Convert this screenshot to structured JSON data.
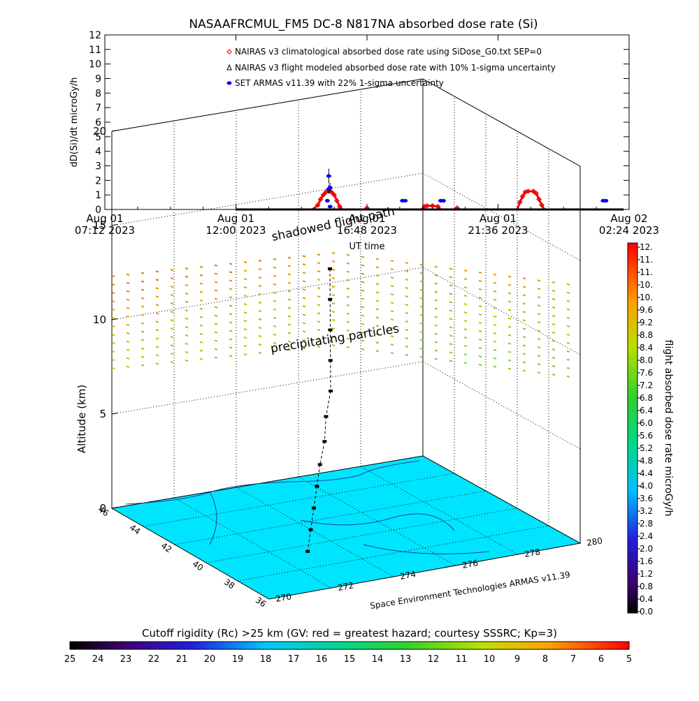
{
  "chart_data": [
    {
      "type": "line",
      "title": "NASAAFRCMUL_FM5 DC-8   N817NA absorbed dose rate (Si)",
      "xlabel": "UT time",
      "ylabel": "dD(Si)/dt microGy/h",
      "ylim": [
        0,
        12
      ],
      "yticks": [
        "0",
        "1",
        "2",
        "3",
        "4",
        "5",
        "6",
        "7",
        "8",
        "9",
        "10",
        "11",
        "12"
      ],
      "xticks": [
        {
          "line1": "Aug 01",
          "line2": "07:12 2023"
        },
        {
          "line1": "Aug 01",
          "line2": "12:00 2023"
        },
        {
          "line1": "Aug 01",
          "line2": "16:48 2023"
        },
        {
          "line1": "Aug 01",
          "line2": "21:36 2023"
        },
        {
          "line1": "Aug 02",
          "line2": "02:24 2023"
        }
      ],
      "xrange_hours": [
        0,
        19.2
      ],
      "legend_position": "top-right",
      "series": [
        {
          "name": "NAIRAS v3 climatological absorbed dose rate using SiDose_G0.txt SEP=0",
          "marker": "diamond",
          "color": "#dd0000",
          "points": [
            [
              4.8,
              0
            ],
            [
              7.6,
              0
            ],
            [
              7.8,
              0.3
            ],
            [
              7.9,
              0.7
            ],
            [
              8.0,
              1.0
            ],
            [
              8.1,
              1.2
            ],
            [
              8.2,
              1.25
            ],
            [
              8.3,
              1.2
            ],
            [
              8.4,
              1.0
            ],
            [
              8.5,
              0.6
            ],
            [
              8.6,
              0.2
            ],
            [
              8.7,
              0
            ],
            [
              9.5,
              0
            ],
            [
              9.6,
              0.1
            ],
            [
              9.7,
              0
            ],
            [
              11.6,
              0
            ],
            [
              11.7,
              0.2
            ],
            [
              11.8,
              0.25
            ],
            [
              12.0,
              0.25
            ],
            [
              12.2,
              0.2
            ],
            [
              12.3,
              0
            ],
            [
              12.8,
              0
            ],
            [
              12.9,
              0.1
            ],
            [
              13.0,
              0
            ],
            [
              15.1,
              0
            ],
            [
              15.2,
              0.5
            ],
            [
              15.3,
              0.9
            ],
            [
              15.4,
              1.2
            ],
            [
              15.5,
              1.25
            ],
            [
              15.7,
              1.25
            ],
            [
              15.8,
              1.1
            ],
            [
              15.9,
              0.7
            ],
            [
              16.0,
              0.3
            ],
            [
              16.1,
              0
            ],
            [
              19.0,
              0
            ]
          ]
        },
        {
          "name": "NAIRAS v3 flight modeled absorbed dose rate with 10% 1-sigma uncertainty",
          "marker": "triangle",
          "color": "#000000",
          "points": [
            [
              4.8,
              0
            ],
            [
              8.1,
              0
            ],
            [
              8.2,
              0
            ],
            [
              19.0,
              0
            ]
          ]
        },
        {
          "name": "SET ARMAS v11.39 with 22% 1-sigma uncertainty",
          "marker": "circle",
          "color": "#0000ff",
          "points": [
            [
              8.15,
              0.6
            ],
            [
              8.2,
              1.4
            ],
            [
              8.25,
              1.5
            ],
            [
              8.2,
              2.3
            ],
            [
              8.25,
              0.2
            ],
            [
              10.9,
              0.6
            ],
            [
              11.0,
              0.6
            ],
            [
              12.3,
              0.6
            ],
            [
              12.4,
              0.6
            ],
            [
              18.25,
              0.6
            ],
            [
              18.35,
              0.6
            ]
          ]
        }
      ]
    },
    {
      "type": "scatter",
      "title": "",
      "zlabel": "Altitude (km)",
      "zticks": [
        "0",
        "5",
        "10",
        "15",
        "20"
      ],
      "yticks": [
        "36",
        "38",
        "40",
        "42",
        "44",
        "46"
      ],
      "xticks": [
        "270",
        "272",
        "274",
        "276",
        "278",
        "280"
      ],
      "annotations": [
        "shadowed flight path",
        "precipitating particles"
      ],
      "credit": "Space Environment Technologies ARMAS v11.39",
      "colorbar": {
        "label": "flight absorbed dose rate microGy/h",
        "ticks": [
          "12.",
          "11.",
          "11.",
          "10.",
          "10.",
          "9.6",
          "9.2",
          "8.8",
          "8.4",
          "8.0",
          "7.6",
          "7.2",
          "6.8",
          "6.4",
          "6.0",
          "5.6",
          "5.2",
          "4.8",
          "4.4",
          "4.0",
          "3.6",
          "3.2",
          "2.8",
          "2.4",
          "2.0",
          "1.6",
          "1.2",
          "0.8",
          "0.4",
          "0.0"
        ]
      },
      "map_fill_color": "#00e5ff",
      "flight_points_km": [
        [
          276.0,
          44.0,
          12.0
        ],
        [
          275.5,
          43.0,
          11.0
        ],
        [
          275.0,
          42.0,
          10.0
        ],
        [
          274.5,
          41.0,
          9.0
        ],
        [
          274.0,
          40.0,
          8.0
        ],
        [
          273.6,
          39.5,
          7.0
        ],
        [
          273.3,
          39.0,
          6.0
        ],
        [
          273.0,
          38.7,
          5.0
        ],
        [
          272.8,
          38.5,
          4.0
        ],
        [
          272.6,
          38.3,
          3.0
        ],
        [
          272.4,
          38.1,
          2.0
        ],
        [
          272.2,
          37.9,
          1.0
        ]
      ]
    }
  ],
  "rigidity_bar": {
    "title": "Cutoff rigidity (Rc) >25 km (GV: red = greatest hazard; courtesy SSSRC; Kp=3)",
    "ticks": [
      "25",
      "24",
      "23",
      "22",
      "21",
      "20",
      "19",
      "18",
      "17",
      "16",
      "15",
      "14",
      "13",
      "12",
      "11",
      "10",
      "9",
      "8",
      "7",
      "6",
      "5"
    ]
  }
}
